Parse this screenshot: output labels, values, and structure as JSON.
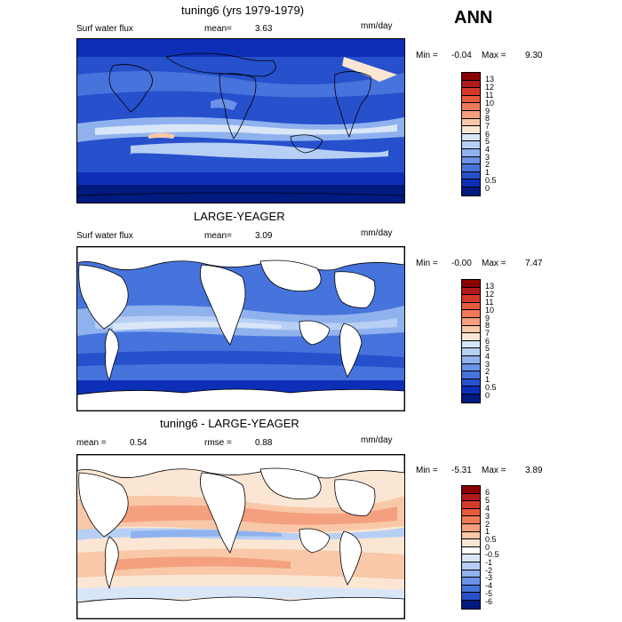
{
  "season": "ANN",
  "panels": [
    {
      "title": "tuning6 (yrs 1979-1979)",
      "left_label": "Surf water flux",
      "mean_label": "mean=",
      "mean_value": "3.63",
      "units": "mm/day",
      "min_label": "Min =",
      "min_value": "-0.04",
      "max_label": "Max =",
      "max_value": "9.30",
      "colorbar_ticks": [
        "13",
        "12",
        "11",
        "10",
        "9",
        "8",
        "7",
        "6",
        "5",
        "4",
        "3",
        "2",
        "1",
        "0.5",
        "0"
      ],
      "colors": [
        "#8b0000",
        "#b01a1a",
        "#d33a2a",
        "#e75a3c",
        "#f07a58",
        "#f4a07e",
        "#f8c8a8",
        "#fbe6d4",
        "#d8e6f8",
        "#b7cff4",
        "#8fb2ee",
        "#6a92e6",
        "#4673dc",
        "#2650cc",
        "#0d2fb8",
        "#001a80"
      ]
    },
    {
      "title": "LARGE-YEAGER",
      "left_label": "Surf water flux",
      "mean_label": "mean=",
      "mean_value": "3.09",
      "units": "mm/day",
      "min_label": "Min =",
      "min_value": "-0.00",
      "max_label": "Max =",
      "max_value": "7.47",
      "colorbar_ticks": [
        "13",
        "12",
        "11",
        "10",
        "9",
        "8",
        "7",
        "6",
        "5",
        "4",
        "3",
        "2",
        "1",
        "0.5",
        "0"
      ],
      "colors": [
        "#8b0000",
        "#b01a1a",
        "#d33a2a",
        "#e75a3c",
        "#f07a58",
        "#f4a07e",
        "#f8c8a8",
        "#fbe6d4",
        "#d8e6f8",
        "#b7cff4",
        "#8fb2ee",
        "#6a92e6",
        "#4673dc",
        "#2650cc",
        "#0d2fb8",
        "#001a80"
      ]
    },
    {
      "title": "tuning6 - LARGE-YEAGER",
      "mean_label": "mean =",
      "mean_value": "0.54",
      "rmse_label": "rmse =",
      "rmse_value": "0.88",
      "units": "mm/day",
      "min_label": "Min =",
      "min_value": "-5.31",
      "max_label": "Max =",
      "max_value": "3.89",
      "colorbar_ticks": [
        "6",
        "5",
        "4",
        "3",
        "2",
        "1",
        "0.5",
        "0",
        "-0.5",
        "-1",
        "-2",
        "-3",
        "-4",
        "-5",
        "-6"
      ],
      "colors": [
        "#8b0000",
        "#b01a1a",
        "#d33a2a",
        "#e75a3c",
        "#f07a58",
        "#f4a07e",
        "#f8c8a8",
        "#fbe6d4",
        "#ffffff",
        "#d8e6f8",
        "#b7cff4",
        "#8fb2ee",
        "#6a92e6",
        "#4673dc",
        "#2650cc",
        "#001a80"
      ]
    }
  ]
}
